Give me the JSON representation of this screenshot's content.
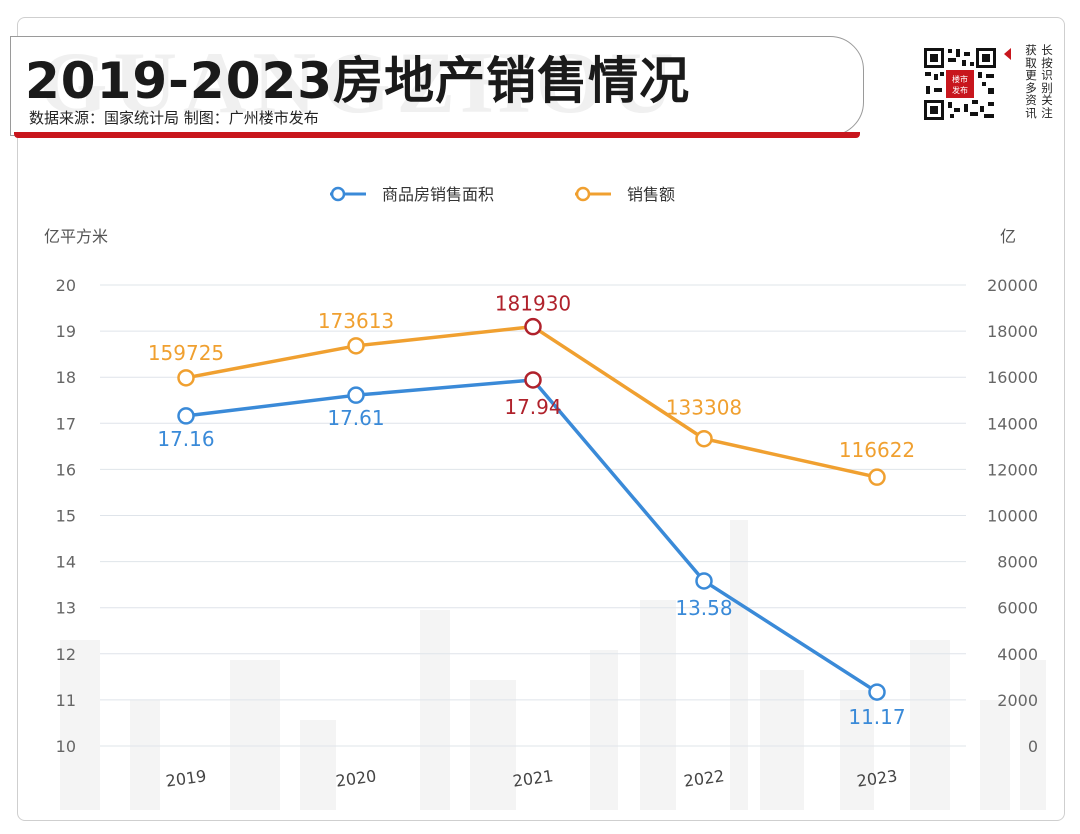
{
  "header": {
    "title": "2019-2023房地产销售情况",
    "watermark": "GUANGZHOU",
    "subtitle": "数据来源：国家统计局  制图：广州楼市发布"
  },
  "qr": {
    "side_text": "长按识别关注获取更多资讯",
    "col1": "长按识别关注",
    "col2": "获取更多资讯",
    "badge": "楼市发布",
    "icon": "qr-code-icon"
  },
  "chart_data": {
    "type": "line",
    "categories": [
      "2019",
      "2020",
      "2021",
      "2022",
      "2023"
    ],
    "left_axis": {
      "label": "亿平方米",
      "min": 10,
      "max": 20,
      "ticks": [
        10,
        11,
        12,
        13,
        14,
        15,
        16,
        17,
        18,
        19,
        20
      ]
    },
    "right_axis": {
      "label": "亿",
      "min": 0,
      "max": 20000,
      "ticks": [
        0,
        2000,
        4000,
        6000,
        8000,
        10000,
        12000,
        14000,
        16000,
        18000,
        20000
      ]
    },
    "series": [
      {
        "name": "商品房销售面积",
        "axis": "left",
        "color": "#3a8ad8",
        "values": [
          17.16,
          17.61,
          17.94,
          13.58,
          11.17
        ],
        "labels": [
          "17.16",
          "17.61",
          "17.94",
          "13.58",
          "11.17"
        ]
      },
      {
        "name": "销售额",
        "axis": "right",
        "color": "#f0a030",
        "values": [
          159725,
          173613,
          181930,
          133308,
          116622
        ],
        "plot_values": [
          15972.5,
          17361.3,
          18193.0,
          13330.8,
          11662.2
        ],
        "labels": [
          "159725",
          "173613",
          "181930",
          "133308",
          "116622"
        ]
      }
    ],
    "highlight": {
      "category": "2021",
      "color": "#b0222c"
    },
    "grid": true,
    "legend": "top-center"
  }
}
